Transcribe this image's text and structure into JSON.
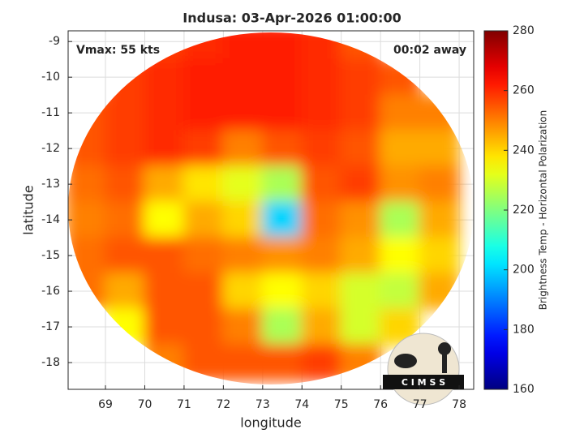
{
  "chart_data": {
    "type": "heatmap",
    "title": "Indusa: 03-Apr-2026 01:00:00",
    "annotations": [
      "Vmax: 55 kts",
      "00:02 away"
    ],
    "logo": "C I M S S",
    "x_label": "longitude",
    "y_label": "latitude",
    "colorbar_label": "Brightness Temp - Horizontal Polarization",
    "colormap": "jet",
    "x": [
      68.5,
      69.5,
      70.5,
      71.5,
      72.5,
      73.5,
      74.5,
      75.5,
      76.5,
      77.5
    ],
    "y": [
      -9,
      -10,
      -11,
      -12,
      -13,
      -14,
      -15,
      -16,
      -17,
      -18
    ],
    "values": [
      [
        null,
        null,
        258,
        260,
        262,
        262,
        260,
        255,
        null,
        null
      ],
      [
        null,
        258,
        260,
        262,
        262,
        262,
        260,
        258,
        255,
        null
      ],
      [
        255,
        258,
        260,
        262,
        262,
        262,
        260,
        258,
        250,
        250
      ],
      [
        255,
        258,
        260,
        258,
        250,
        255,
        258,
        255,
        245,
        245
      ],
      [
        252,
        255,
        245,
        238,
        232,
        225,
        255,
        258,
        248,
        250
      ],
      [
        250,
        252,
        235,
        245,
        240,
        200,
        252,
        248,
        225,
        245
      ],
      [
        252,
        255,
        255,
        252,
        250,
        248,
        250,
        245,
        235,
        240
      ],
      [
        252,
        245,
        255,
        255,
        240,
        235,
        240,
        230,
        228,
        245
      ],
      [
        null,
        235,
        255,
        255,
        250,
        225,
        245,
        230,
        240,
        null
      ],
      [
        null,
        null,
        250,
        255,
        255,
        255,
        258,
        250,
        null,
        null
      ]
    ],
    "xlim": [
      68.05,
      78.37
    ],
    "ylim": [
      -18.75,
      -8.7
    ],
    "xticks": [
      69,
      70,
      71,
      72,
      73,
      74,
      75,
      76,
      77,
      78
    ],
    "yticks": [
      -9,
      -10,
      -11,
      -12,
      -13,
      -14,
      -15,
      -16,
      -17,
      -18
    ],
    "clim": [
      160,
      280
    ],
    "cticks": [
      160,
      180,
      200,
      220,
      240,
      260,
      280
    ],
    "grid": true
  }
}
